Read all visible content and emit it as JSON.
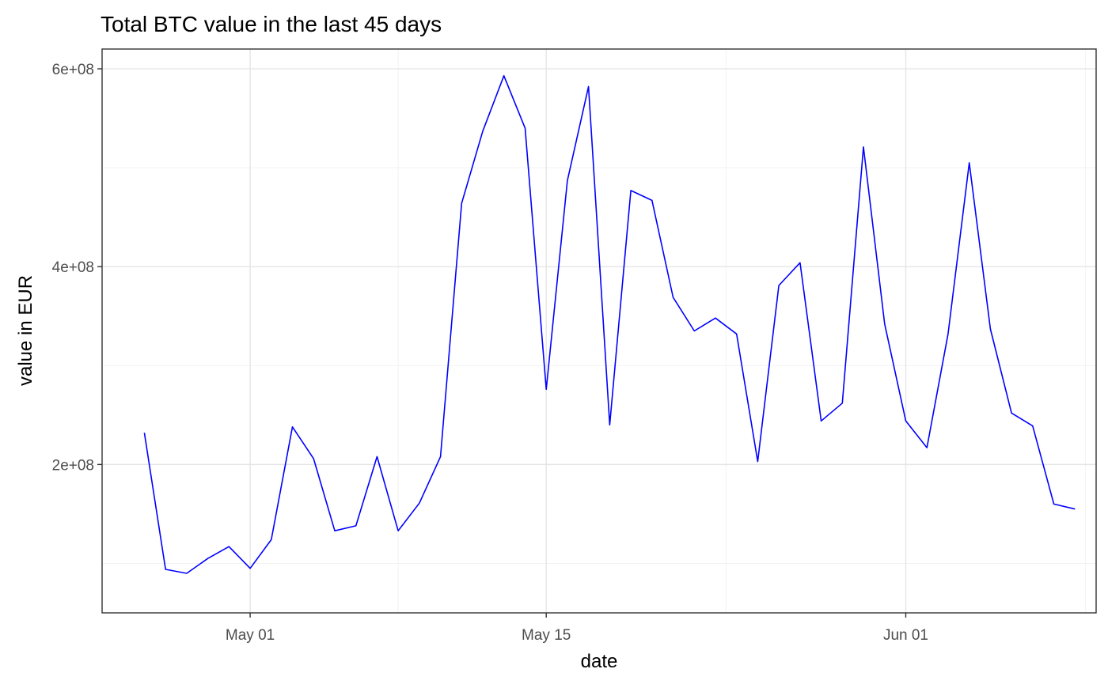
{
  "chart_data": {
    "type": "line",
    "title": "Total BTC value in the last 45 days",
    "xlabel": "date",
    "ylabel": "value in EUR",
    "line_color": "#0000ff",
    "x_range": [
      "2023-04-24",
      "2023-06-10"
    ],
    "ylim": [
      50000000,
      620000000
    ],
    "x_ticks": [
      {
        "date": "2023-05-01",
        "label": "May 01"
      },
      {
        "date": "2023-05-15",
        "label": "May 15"
      },
      {
        "date": "2023-06-01",
        "label": "Jun 01"
      }
    ],
    "y_ticks": [
      {
        "value": 200000000,
        "label": "2e+08"
      },
      {
        "value": 400000000,
        "label": "4e+08"
      },
      {
        "value": 600000000,
        "label": "6e+08"
      }
    ],
    "y_minor_ticks": [
      100000000,
      300000000,
      500000000
    ],
    "series": [
      {
        "x": [
          "2023-04-26",
          "2023-04-27",
          "2023-04-28",
          "2023-04-29",
          "2023-04-30",
          "2023-05-01",
          "2023-05-02",
          "2023-05-03",
          "2023-05-04",
          "2023-05-05",
          "2023-05-06",
          "2023-05-07",
          "2023-05-08",
          "2023-05-09",
          "2023-05-10",
          "2023-05-11",
          "2023-05-12",
          "2023-05-13",
          "2023-05-14",
          "2023-05-15",
          "2023-05-16",
          "2023-05-17",
          "2023-05-18",
          "2023-05-19",
          "2023-05-20",
          "2023-05-21",
          "2023-05-22",
          "2023-05-23",
          "2023-05-24",
          "2023-05-25",
          "2023-05-26",
          "2023-05-27",
          "2023-05-28",
          "2023-05-29",
          "2023-05-30",
          "2023-05-31",
          "2023-06-01",
          "2023-06-02",
          "2023-06-03",
          "2023-06-04",
          "2023-06-05",
          "2023-06-06",
          "2023-06-07",
          "2023-06-08",
          "2023-06-09"
        ],
        "y": [
          232000000,
          94000000,
          90000000,
          105000000,
          117000000,
          95000000,
          124000000,
          238000000,
          206000000,
          133000000,
          138000000,
          208000000,
          133000000,
          161000000,
          208000000,
          464000000,
          537000000,
          593000000,
          540000000,
          276000000,
          487000000,
          582000000,
          240000000,
          477000000,
          467000000,
          369000000,
          335000000,
          348000000,
          332000000,
          203000000,
          381000000,
          404000000,
          244000000,
          262000000,
          521000000,
          342000000,
          244000000,
          217000000,
          332000000,
          505000000,
          337000000,
          252000000,
          239000000,
          160000000,
          155000000
        ]
      }
    ]
  }
}
